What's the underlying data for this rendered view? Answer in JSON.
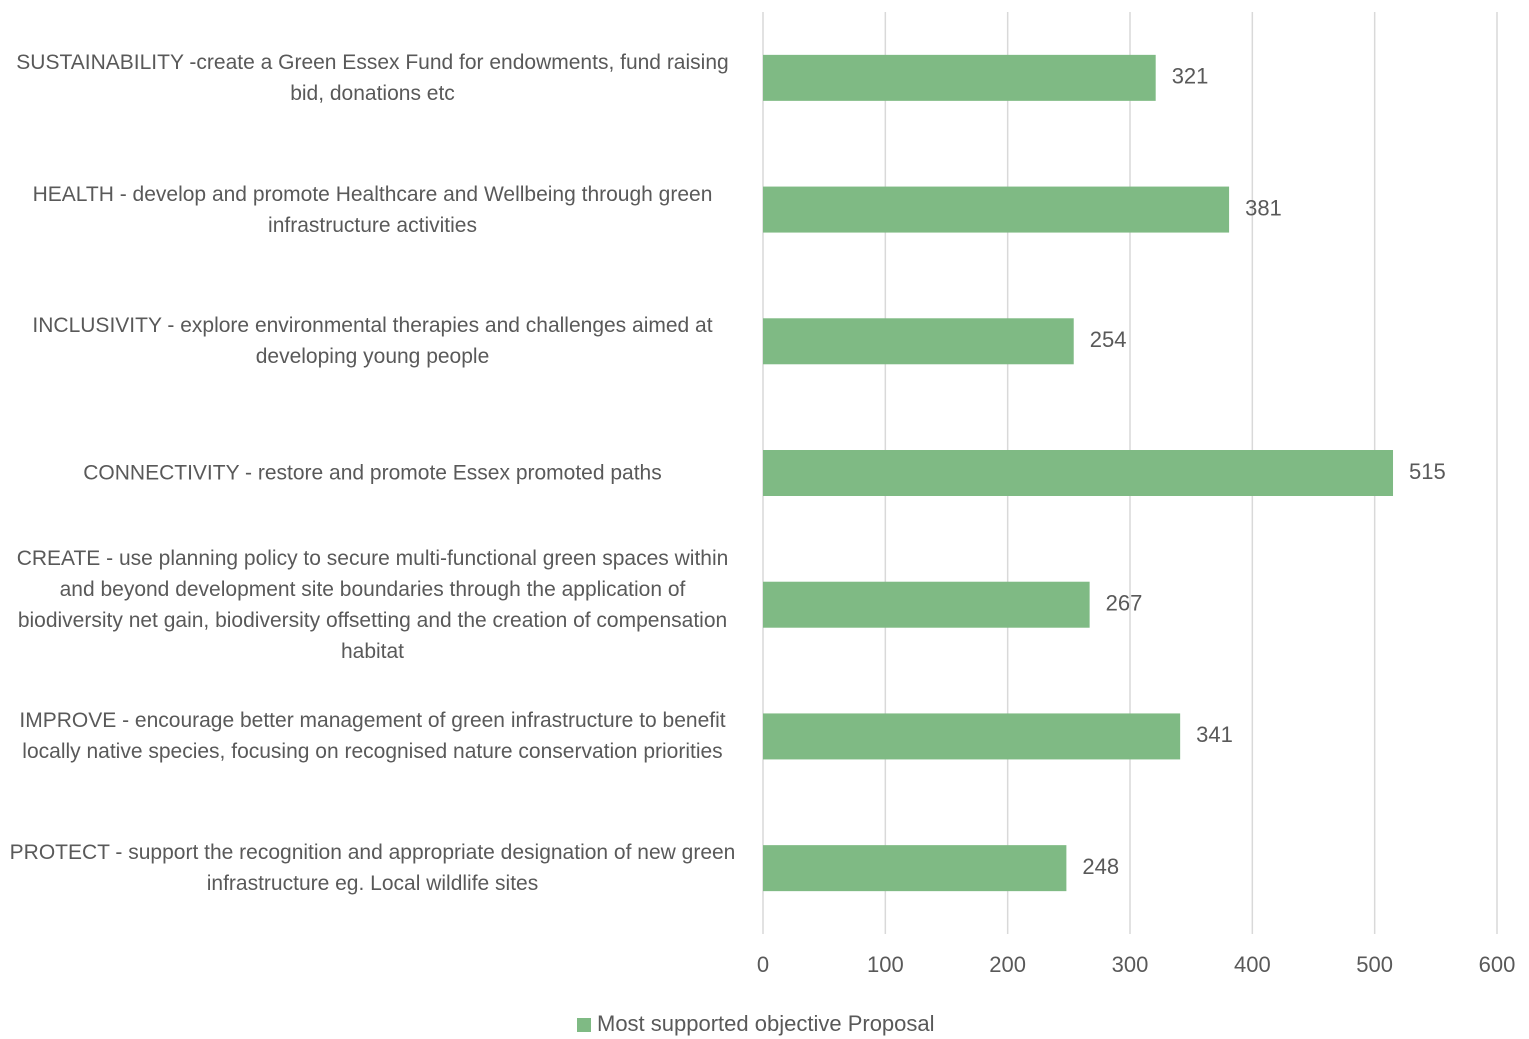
{
  "chart_data": {
    "type": "hbar",
    "categories": [
      "SUSTAINABILITY -create a Green Essex Fund for endowments, fund raising bid, donations etc",
      "HEALTH - develop and promote Healthcare and Wellbeing through green infrastructure activities",
      "INCLUSIVITY - explore environmental therapies and challenges aimed at developing young people",
      "CONNECTIVITY - restore and promote Essex promoted paths",
      "CREATE - use planning policy to secure multi-functional green spaces within and beyond development site boundaries through the application of biodiversity net gain, biodiversity offsetting and the creation of compensation habitat",
      "IMPROVE - encourage better management of green infrastructure to benefit locally native species, focusing on recognised nature conservation priorities",
      "PROTECT - support the recognition and appropriate designation of new green infrastructure eg. Local wildlife sites"
    ],
    "series": [
      {
        "name": "Most supported objective Proposal",
        "color": "#7fba84",
        "values": [
          321,
          381,
          254,
          515,
          267,
          341,
          248
        ]
      }
    ],
    "xlim": [
      0,
      600
    ],
    "xticks": [
      0,
      100,
      200,
      300,
      400,
      500,
      600
    ],
    "grid": true,
    "legend": "bottom"
  }
}
